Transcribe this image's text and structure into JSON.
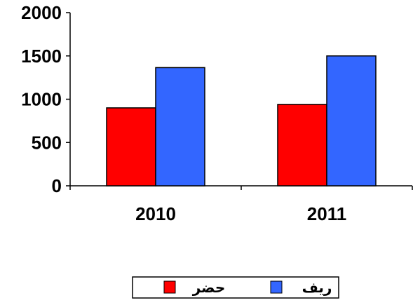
{
  "chart_data": {
    "type": "bar",
    "title": "",
    "xlabel": "",
    "ylabel": "",
    "categories": [
      "2010",
      "2011"
    ],
    "series": [
      {
        "name": "حضر",
        "values": [
          900,
          940
        ],
        "color": "#ff0000"
      },
      {
        "name": "ريف",
        "values": [
          1365,
          1500
        ],
        "color": "#3366ff"
      }
    ],
    "ylim": [
      0,
      2000
    ],
    "yticks": [
      0,
      500,
      1000,
      1500,
      2000
    ],
    "grid": false,
    "legend_position": "bottom"
  }
}
